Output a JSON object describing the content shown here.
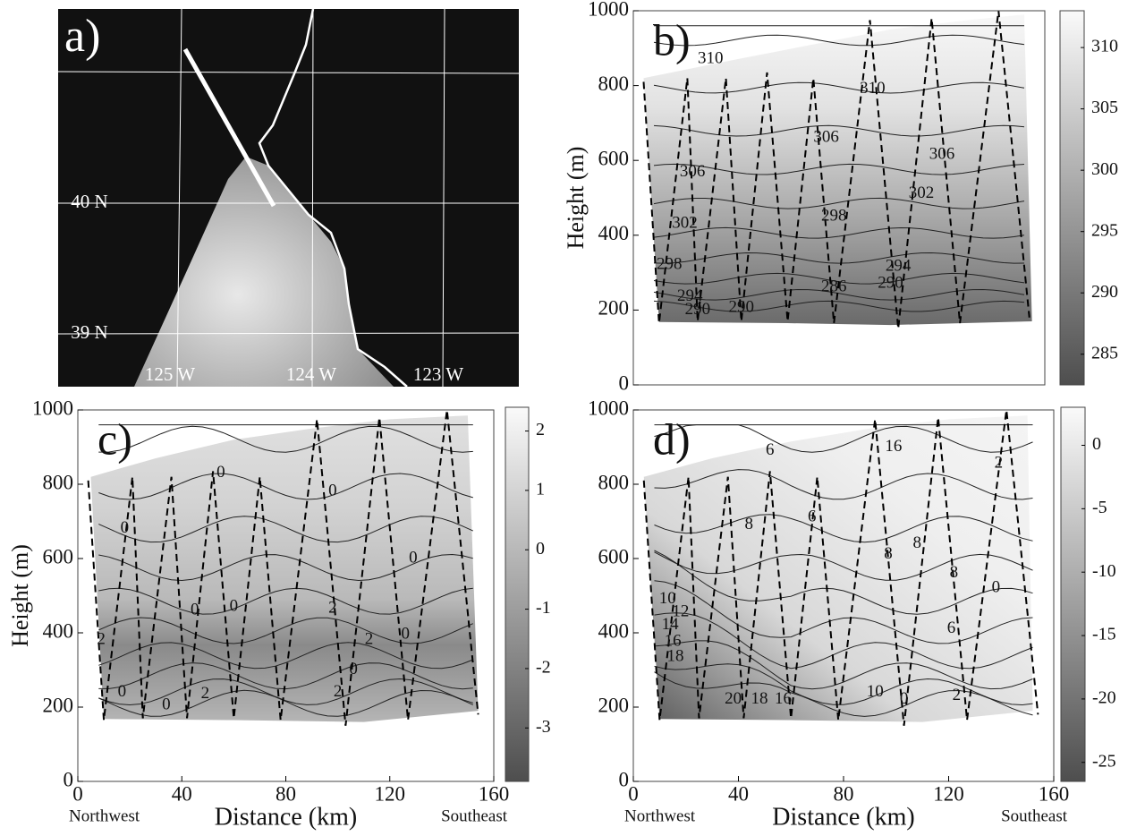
{
  "chart_data": [
    {
      "type": "image",
      "label": "a)",
      "annotations": [
        "40 N",
        "39 N",
        "125 W",
        "124 W",
        "123 W"
      ]
    },
    {
      "type": "contour",
      "label": "b)",
      "ylabel": "Height (m)",
      "xlim": [
        0,
        160
      ],
      "ylim": [
        0,
        1000
      ],
      "yticks": [
        0,
        200,
        400,
        600,
        800,
        1000
      ],
      "colorbar": {
        "lim": [
          282.5,
          313
        ],
        "ticks": [
          285,
          290,
          295,
          300,
          305,
          310
        ]
      },
      "contour_labels": [
        "310",
        "310",
        "306",
        "306",
        "306",
        "302",
        "302",
        "298",
        "298",
        "294",
        "294",
        "290",
        "290",
        "290",
        "286"
      ]
    },
    {
      "type": "contour",
      "label": "c)",
      "ylabel": "Height (m)",
      "xlabel": "Distance (km)",
      "xlim": [
        0,
        160
      ],
      "ylim": [
        0,
        1000
      ],
      "xticks": [
        0,
        40,
        80,
        120,
        160
      ],
      "yticks": [
        0,
        200,
        400,
        600,
        800,
        1000
      ],
      "left_note": "Northwest",
      "right_note": "Southeast",
      "colorbar": {
        "lim": [
          -3.9,
          2.4
        ],
        "ticks": [
          -3,
          -2,
          -1,
          0,
          1,
          2
        ]
      },
      "contour_labels": [
        "0",
        "0",
        "0",
        "0",
        "2",
        "0",
        "2",
        "2",
        "0",
        "2",
        "0",
        "0",
        "2",
        "0",
        "0"
      ]
    },
    {
      "type": "contour",
      "label": "d)",
      "xlabel": "Distance (km)",
      "xlim": [
        0,
        160
      ],
      "ylim": [
        0,
        1000
      ],
      "xticks": [
        0,
        40,
        80,
        120,
        160
      ],
      "yticks": [
        0,
        200,
        400,
        600,
        800,
        1000
      ],
      "left_note": "Northwest",
      "right_note": "Southeast",
      "colorbar": {
        "lim": [
          -26.5,
          3
        ],
        "ticks": [
          -25,
          -20,
          -15,
          -10,
          -5,
          0
        ]
      },
      "contour_labels": [
        "6",
        "6",
        "8",
        "8",
        "8",
        "8",
        "16",
        "10",
        "12",
        "14",
        "16",
        "18",
        "20",
        "18",
        "16",
        "10",
        "2",
        "0",
        "6",
        "2",
        "0"
      ]
    }
  ]
}
